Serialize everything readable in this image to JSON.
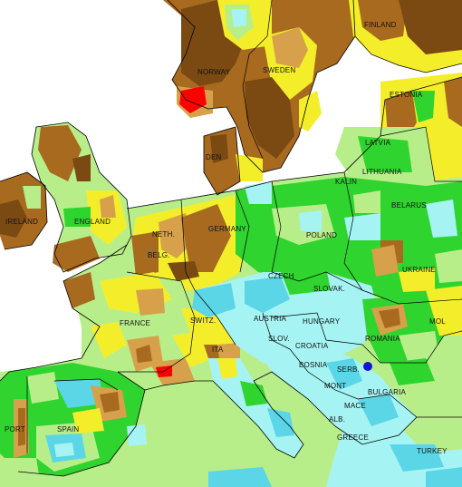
{
  "map": {
    "labels": {
      "finland": "FINLAND",
      "norway": "NORWAY",
      "sweden": "SWEDEN",
      "estonia": "ESTONIA",
      "latvia": "LATVIA",
      "lithuania": "LITHUANIA",
      "kalin": "KALIN",
      "belarus": "BELARUS",
      "ukraine": "UKRAINE",
      "poland": "POLAND",
      "germany": "GERMANY",
      "neth": "NETH.",
      "belg": "BELG.",
      "england": "ENGLAND",
      "ireland": "IRELAND",
      "france": "FRANCE",
      "switz": "SWITZ.",
      "austria": "AUSTRIA",
      "czech": "CZECH",
      "slovak": "SLOVAK.",
      "hungary": "HUNGARY",
      "romania": "ROMANIA",
      "mol": "MOL",
      "slov": "SLOV.",
      "croatia": "CROATIA",
      "bosnia": "BOSNIA",
      "serb": "SERB.",
      "bulgaria": "BULGARIA",
      "mont": "MONT",
      "mace": "MACE",
      "alb": "ALB.",
      "greece": "GREECE",
      "turkey": "TURKEY",
      "spain": "SPAIN",
      "port": "PORT",
      "den": "DEN",
      "ita": "ITA"
    },
    "colors": {
      "sea": "#ffffff",
      "dark_brown": "#7a4a12",
      "brown": "#a86a1f",
      "tan": "#d6a14a",
      "yellow": "#f4ee2a",
      "light_green": "#b8ee8a",
      "green": "#2fd42f",
      "cyan": "#a6f3f3",
      "turquoise": "#5ad6e6",
      "red": "#ff0000",
      "blue": "#1414d8"
    }
  }
}
